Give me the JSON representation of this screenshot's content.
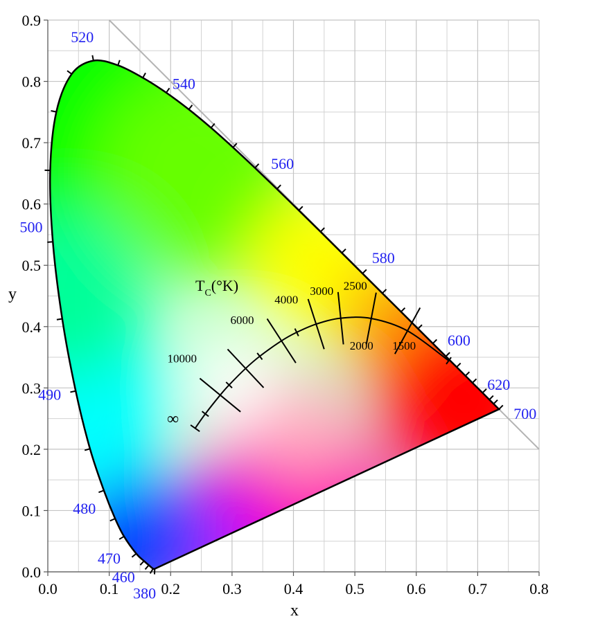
{
  "chart_data": {
    "type": "line",
    "x_label": "x",
    "y_label": "y",
    "xlim": [
      0,
      0.8
    ],
    "ylim": [
      0,
      0.9
    ],
    "xticks": [
      {
        "value": 0,
        "label": "0.0"
      },
      0.1,
      0.2,
      0.3,
      0.4,
      0.5,
      0.6,
      0.7,
      0.8
    ],
    "yticks": [
      {
        "value": 0,
        "label": "0.0"
      },
      0.1,
      0.2,
      0.3,
      0.4,
      0.5,
      0.6,
      0.7,
      0.8,
      0.9
    ],
    "minor_xticks": [
      0.05,
      0.15,
      0.25,
      0.35,
      0.45,
      0.55,
      0.65,
      0.75
    ],
    "minor_yticks": [
      0.05,
      0.15,
      0.25,
      0.35,
      0.45,
      0.55,
      0.65,
      0.75,
      0.85
    ],
    "grid": true,
    "reference_line": {
      "color": "#b4b4b4",
      "x": [
        0.1,
        0.8
      ],
      "y": [
        0.9,
        0.2
      ]
    },
    "series": [
      {
        "color": "#000000",
        "x": [
          0.1741,
          0.1714,
          0.1644,
          0.1566,
          0.144,
          0.1241,
          0.1096,
          0.0913,
          0.0687,
          0.0454,
          0.0235,
          0.0082,
          0.0039,
          0.0139,
          0.0389,
          0.0743,
          0.1142,
          0.1547,
          0.1929,
          0.2296,
          0.2658,
          0.3016,
          0.3373,
          0.3731,
          0.4087,
          0.4441,
          0.4788,
          0.5125,
          0.5448,
          0.5752,
          0.6029,
          0.627,
          0.6482,
          0.6658,
          0.6801,
          0.6915,
          0.7079,
          0.719,
          0.726,
          0.7347
        ],
        "y": [
          0.005,
          0.0051,
          0.0109,
          0.0177,
          0.0297,
          0.0578,
          0.0868,
          0.1327,
          0.2007,
          0.295,
          0.4127,
          0.5384,
          0.6548,
          0.7502,
          0.812,
          0.8338,
          0.8262,
          0.8059,
          0.7816,
          0.7543,
          0.7243,
          0.6923,
          0.6589,
          0.6245,
          0.5896,
          0.5547,
          0.5202,
          0.4866,
          0.4544,
          0.4242,
          0.3965,
          0.3725,
          0.3514,
          0.334,
          0.3197,
          0.3083,
          0.292,
          0.2809,
          0.274,
          0.2653
        ],
        "labels": [
          "380",
          null,
          null,
          null,
          "460",
          "470",
          null,
          "480",
          null,
          "490",
          null,
          "500",
          null,
          null,
          null,
          "520",
          null,
          null,
          null,
          "540",
          null,
          null,
          null,
          "560",
          null,
          null,
          null,
          "580",
          null,
          null,
          null,
          "600",
          null,
          null,
          null,
          "620",
          null,
          null,
          null,
          "700"
        ]
      },
      {
        "color": "#000000",
        "x": [
          0.6528,
          0.5857,
          0.5267,
          0.477,
          0.4369,
          0.4053,
          0.3805,
          0.3451,
          0.3221,
          0.2952,
          0.2807,
          0.2565,
          0.2399
        ],
        "y": [
          0.3444,
          0.3931,
          0.4133,
          0.4137,
          0.4041,
          0.3907,
          0.3768,
          0.3516,
          0.3318,
          0.3048,
          0.2883,
          0.2577,
          0.2342
        ],
        "labels": [
          null,
          "1500",
          "2000",
          "2500",
          "3000",
          null,
          "4000",
          null,
          "6000",
          null,
          "10000",
          null,
          "∞"
        ]
      }
    ],
    "annotation": {
      "symbol": "T",
      "subscript": "C",
      "unit": "(°K)"
    }
  }
}
